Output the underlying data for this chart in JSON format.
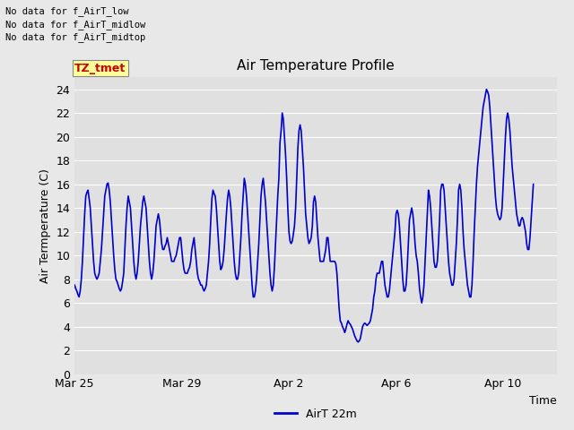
{
  "title": "Air Temperature Profile",
  "xlabel": "Time",
  "ylabel": "Air Termperature (C)",
  "legend_label": "AirT 22m",
  "line_color": "#0000CC",
  "line_width": 1.2,
  "ylim": [
    0,
    25
  ],
  "yticks": [
    0,
    2,
    4,
    6,
    8,
    10,
    12,
    14,
    16,
    18,
    20,
    22,
    24
  ],
  "bg_color": "#E8E8E8",
  "plot_bg_color": "#E0E0E0",
  "annotations": [
    "No data for f_AirT_low",
    "No data for f_AirT_midlow",
    "No data for f_AirT_midtop"
  ],
  "annotation_box_text": "TZ_tmet",
  "annotation_box_color": "#CC0000",
  "annotation_box_bg": "#FFFF99",
  "temperatures": [
    7.5,
    7.2,
    7.0,
    6.7,
    6.5,
    7.0,
    8.0,
    9.5,
    11.5,
    13.5,
    15.0,
    15.3,
    15.5,
    14.8,
    14.0,
    12.5,
    11.0,
    9.5,
    8.5,
    8.2,
    8.0,
    8.2,
    8.5,
    9.5,
    10.5,
    12.0,
    13.5,
    15.0,
    15.5,
    16.0,
    16.1,
    15.5,
    14.5,
    13.0,
    11.5,
    10.0,
    8.8,
    8.0,
    7.8,
    7.5,
    7.2,
    7.0,
    7.2,
    7.8,
    8.5,
    10.5,
    12.5,
    14.0,
    15.0,
    14.5,
    14.0,
    12.5,
    11.0,
    9.5,
    8.5,
    8.0,
    8.5,
    9.5,
    11.0,
    12.5,
    13.5,
    14.5,
    15.0,
    14.5,
    14.0,
    12.5,
    11.0,
    9.5,
    8.5,
    8.0,
    8.5,
    9.5,
    11.0,
    12.5,
    13.0,
    13.5,
    13.0,
    12.0,
    11.0,
    10.5,
    10.5,
    10.8,
    11.0,
    11.5,
    11.0,
    10.5,
    10.0,
    9.5,
    9.5,
    9.5,
    9.8,
    10.0,
    10.5,
    11.0,
    11.5,
    11.5,
    10.5,
    9.5,
    8.8,
    8.5,
    8.5,
    8.5,
    8.8,
    9.0,
    9.5,
    10.5,
    11.0,
    11.5,
    10.5,
    9.5,
    8.5,
    8.0,
    7.8,
    7.5,
    7.5,
    7.2,
    7.0,
    7.2,
    7.5,
    8.5,
    9.5,
    11.0,
    13.0,
    14.8,
    15.5,
    15.2,
    15.0,
    14.0,
    12.5,
    11.0,
    9.5,
    8.8,
    9.0,
    9.5,
    10.5,
    12.0,
    13.5,
    14.8,
    15.5,
    15.0,
    14.0,
    12.5,
    11.0,
    9.5,
    8.5,
    8.0,
    8.0,
    8.5,
    10.0,
    11.5,
    13.5,
    15.0,
    16.5,
    16.0,
    15.0,
    13.5,
    12.0,
    10.5,
    9.0,
    7.5,
    6.5,
    6.5,
    7.0,
    8.0,
    9.5,
    11.0,
    13.0,
    15.0,
    16.0,
    16.5,
    15.5,
    14.5,
    13.0,
    11.5,
    10.0,
    8.5,
    7.5,
    7.0,
    7.5,
    9.0,
    11.0,
    13.0,
    15.0,
    16.5,
    19.5,
    20.5,
    22.0,
    21.5,
    20.0,
    18.5,
    16.5,
    14.0,
    12.0,
    11.2,
    11.0,
    11.2,
    11.8,
    12.5,
    14.0,
    16.5,
    19.0,
    20.5,
    21.0,
    20.5,
    19.0,
    17.5,
    15.5,
    13.5,
    12.5,
    11.5,
    11.0,
    11.2,
    11.5,
    12.5,
    14.5,
    15.0,
    14.5,
    13.0,
    11.5,
    10.5,
    9.5,
    9.5,
    9.5,
    9.5,
    10.0,
    10.5,
    11.5,
    11.5,
    10.5,
    9.5,
    9.5,
    9.5,
    9.5,
    9.5,
    9.3,
    8.5,
    7.0,
    5.5,
    4.5,
    4.3,
    4.0,
    3.8,
    3.5,
    3.8,
    4.2,
    4.5,
    4.3,
    4.2,
    4.0,
    3.8,
    3.5,
    3.2,
    3.0,
    2.8,
    2.7,
    2.8,
    3.0,
    3.5,
    4.0,
    4.2,
    4.3,
    4.2,
    4.1,
    4.2,
    4.3,
    4.5,
    5.0,
    5.5,
    6.5,
    7.0,
    8.0,
    8.5,
    8.5,
    8.5,
    9.0,
    9.5,
    9.5,
    8.5,
    7.5,
    7.0,
    6.5,
    6.5,
    7.0,
    8.0,
    9.0,
    10.0,
    11.0,
    12.0,
    13.5,
    13.8,
    13.5,
    12.5,
    11.0,
    9.5,
    8.0,
    7.0,
    7.0,
    7.5,
    9.0,
    11.0,
    13.0,
    13.5,
    14.0,
    13.5,
    12.5,
    11.0,
    10.0,
    9.5,
    8.5,
    7.2,
    6.5,
    6.0,
    6.5,
    7.5,
    9.5,
    11.5,
    13.5,
    15.5,
    15.0,
    14.0,
    12.5,
    11.0,
    9.5,
    9.0,
    9.0,
    9.5,
    11.0,
    13.0,
    15.5,
    16.0,
    16.0,
    15.5,
    14.0,
    12.5,
    11.0,
    9.5,
    8.5,
    8.0,
    7.5,
    7.5,
    8.0,
    9.5,
    11.0,
    13.0,
    15.5,
    16.0,
    15.5,
    14.0,
    12.0,
    10.5,
    9.5,
    8.5,
    7.5,
    7.0,
    6.5,
    6.5,
    7.5,
    9.5,
    12.0,
    14.0,
    16.0,
    17.5,
    18.5,
    19.5,
    20.5,
    21.5,
    22.5,
    23.0,
    23.5,
    24.0,
    23.8,
    23.5,
    22.5,
    21.0,
    19.5,
    18.0,
    16.5,
    15.0,
    14.0,
    13.5,
    13.2,
    13.0,
    13.2,
    14.0,
    16.0,
    18.0,
    20.0,
    21.5,
    22.0,
    21.5,
    20.5,
    19.0,
    17.5,
    16.5,
    15.5,
    14.5,
    13.5,
    13.0,
    12.5,
    12.5,
    13.0,
    13.2,
    13.0,
    12.5,
    12.0,
    11.0,
    10.5,
    10.5,
    11.5,
    13.0,
    14.5,
    16.0
  ]
}
